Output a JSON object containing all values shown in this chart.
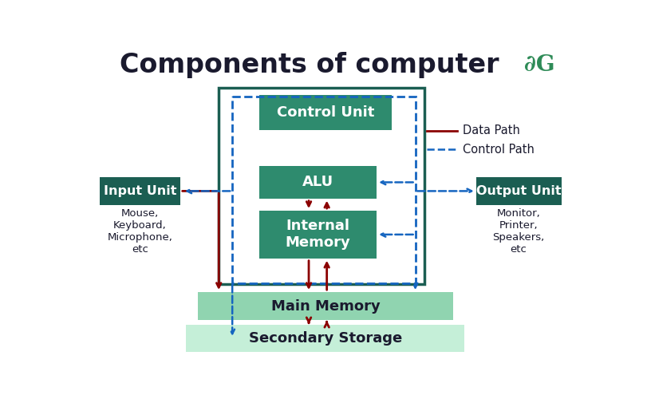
{
  "title": "Components of computer",
  "title_fontsize": 24,
  "title_color": "#1a1a2e",
  "bg_color": "#ffffff",
  "dark_green": "#1b5e52",
  "mid_green": "#2e8b6e",
  "light_green_main": "#90d4b0",
  "light_green_sec": "#c5efd8",
  "input_color": "#1b5e52",
  "output_color": "#1b5e52",
  "red": "#8b0000",
  "blue": "#1565c0",
  "white": "#ffffff",
  "text_dark": "#1a1a2e",
  "input_label": "Input Unit",
  "output_label": "Output Unit",
  "cu_label": "Control Unit",
  "alu_label": "ALU",
  "im_label": "Internal\nMemory",
  "mm_label": "Main Memory",
  "ss_label": "Secondary Storage",
  "input_sub": "Mouse,\nKeyboard,\nMicrophone,\netc",
  "output_sub": "Monitor,\nPrinter,\nSpeakers,\netc",
  "legend_data": "Data Path",
  "legend_control": "Control Path"
}
